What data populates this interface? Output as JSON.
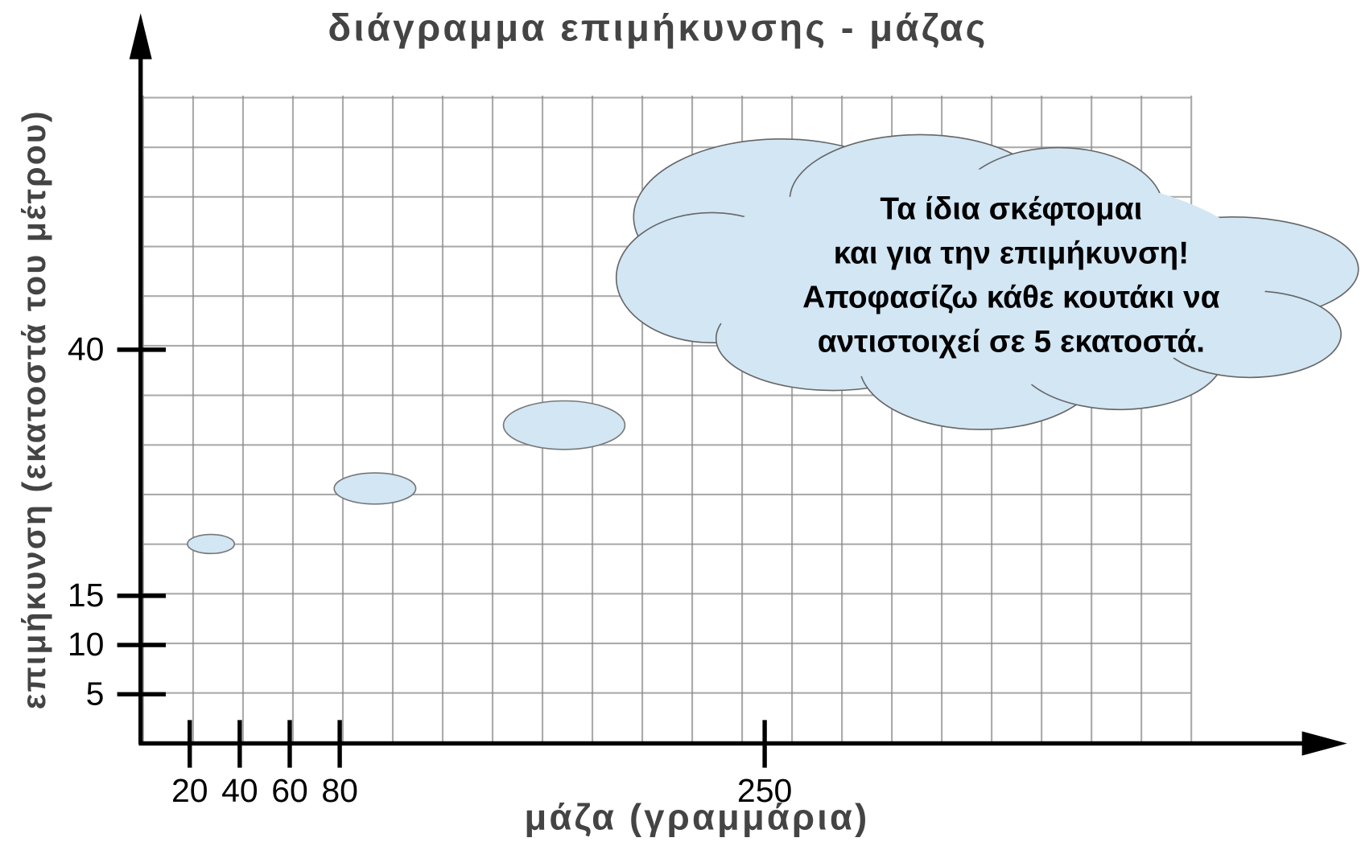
{
  "title": "διάγραμμα επιμήκυνσης - μάζας",
  "x_axis": {
    "label": "μάζα (γραμμάρια)",
    "ticks": [
      20,
      40,
      60,
      80,
      250
    ]
  },
  "y_axis": {
    "label": "επιμήκυνση (εκατοστά του μέτρου)",
    "ticks": [
      5,
      10,
      15,
      40
    ]
  },
  "cloud": {
    "lines": [
      "Τα ίδια σκέφτομαι",
      "και για την επιμήκυνση!",
      "Αποφασίζω κάθε κουτάκι να",
      "αντιστοιχεί σε 5 εκατοστά."
    ]
  }
}
